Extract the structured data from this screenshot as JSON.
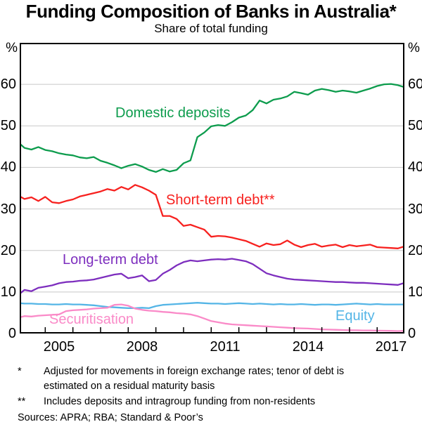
{
  "header": {
    "title": "Funding Composition of Banks in Australia*",
    "subtitle": "Share of total funding"
  },
  "axes": {
    "unit_left": "%",
    "unit_right": "%",
    "y_ticks": [
      60,
      50,
      40,
      30,
      20,
      10,
      0
    ],
    "x_ticks": [
      2005,
      2008,
      2011,
      2014,
      2017
    ],
    "grid_color": "#c8c8c8",
    "axis_color": "#000000"
  },
  "chart_data": {
    "type": "line",
    "title": "Funding Composition of Banks in Australia*",
    "subtitle": "Share of total funding",
    "ylabel": "%",
    "ylim": [
      0,
      70
    ],
    "xlim": [
      2003.58,
      2017.49
    ],
    "grid": true,
    "legend_position": "inline-labels",
    "x": [
      2003.58,
      2003.75,
      2004.0,
      2004.25,
      2004.5,
      2004.75,
      2005.0,
      2005.25,
      2005.5,
      2005.75,
      2006.0,
      2006.25,
      2006.5,
      2006.75,
      2007.0,
      2007.25,
      2007.5,
      2007.75,
      2008.0,
      2008.25,
      2008.5,
      2008.75,
      2009.0,
      2009.25,
      2009.5,
      2009.75,
      2010.0,
      2010.25,
      2010.5,
      2010.75,
      2011.0,
      2011.25,
      2011.5,
      2011.75,
      2012.0,
      2012.25,
      2012.5,
      2012.75,
      2013.0,
      2013.25,
      2013.5,
      2013.75,
      2014.0,
      2014.25,
      2014.5,
      2014.75,
      2015.0,
      2015.25,
      2015.5,
      2015.75,
      2016.0,
      2016.25,
      2016.5,
      2016.75,
      2017.0,
      2017.25,
      2017.5
    ],
    "series": [
      {
        "name": "Domestic deposits",
        "color": "#0d9c4d",
        "values": [
          45.7,
          44.7,
          44.3,
          44.9,
          44.2,
          43.9,
          43.4,
          43.1,
          42.9,
          42.4,
          42.2,
          42.5,
          41.6,
          41.1,
          40.5,
          39.8,
          40.4,
          40.8,
          40.2,
          39.4,
          38.9,
          39.6,
          39.0,
          39.4,
          41.0,
          41.7,
          47.3,
          48.4,
          49.9,
          50.2,
          50.0,
          50.9,
          52.0,
          52.5,
          53.8,
          56.1,
          55.4,
          56.3,
          56.6,
          57.1,
          58.2,
          57.9,
          57.5,
          58.5,
          58.9,
          58.6,
          58.2,
          58.5,
          58.3,
          58.0,
          58.5,
          59.0,
          59.6,
          60.0,
          60.1,
          59.8,
          59.3
        ]
      },
      {
        "name": "Short-term debt**",
        "color": "#f7211f",
        "values": [
          33.0,
          32.4,
          32.8,
          31.9,
          32.9,
          31.6,
          31.4,
          31.9,
          32.3,
          33.0,
          33.4,
          33.8,
          34.2,
          34.8,
          34.4,
          35.3,
          34.7,
          35.8,
          35.2,
          34.4,
          33.4,
          28.3,
          28.3,
          27.6,
          25.9,
          26.2,
          25.6,
          25.0,
          23.3,
          23.5,
          23.4,
          23.1,
          22.7,
          22.3,
          21.6,
          20.9,
          21.7,
          21.3,
          21.5,
          22.4,
          21.4,
          20.8,
          21.3,
          21.6,
          20.9,
          21.2,
          21.4,
          20.8,
          21.3,
          21.0,
          21.2,
          21.4,
          20.8,
          20.7,
          20.6,
          20.5,
          21.0
        ]
      },
      {
        "name": "Long-term debt",
        "color": "#7d2ebe",
        "values": [
          9.6,
          10.5,
          10.2,
          11.0,
          11.3,
          11.6,
          12.1,
          12.4,
          12.5,
          12.7,
          12.8,
          13.0,
          13.4,
          13.8,
          14.2,
          14.4,
          13.3,
          13.6,
          14.0,
          12.6,
          12.9,
          14.4,
          15.3,
          16.4,
          17.2,
          17.6,
          17.4,
          17.6,
          17.8,
          17.9,
          17.8,
          18.0,
          17.7,
          17.4,
          16.7,
          15.6,
          14.5,
          14.0,
          13.6,
          13.2,
          13.0,
          12.9,
          12.8,
          12.7,
          12.6,
          12.5,
          12.4,
          12.4,
          12.3,
          12.2,
          12.2,
          12.1,
          12.0,
          11.9,
          11.8,
          11.7,
          12.2
        ]
      },
      {
        "name": "Equity",
        "color": "#54b5e6",
        "values": [
          7.3,
          7.2,
          7.2,
          7.1,
          7.1,
          7.0,
          7.0,
          7.1,
          7.0,
          7.0,
          6.9,
          6.8,
          6.6,
          6.4,
          6.3,
          6.2,
          6.1,
          6.1,
          6.2,
          6.1,
          6.6,
          6.9,
          7.0,
          7.1,
          7.2,
          7.3,
          7.4,
          7.3,
          7.2,
          7.2,
          7.1,
          7.2,
          7.3,
          7.2,
          7.1,
          7.2,
          7.1,
          7.0,
          7.1,
          7.0,
          7.0,
          7.1,
          7.0,
          6.9,
          7.0,
          7.0,
          6.9,
          7.0,
          7.1,
          7.2,
          7.1,
          7.0,
          7.1,
          7.0,
          7.0,
          7.0,
          7.0
        ]
      },
      {
        "name": "Securitisation",
        "color": "#fa8ac8",
        "values": [
          3.9,
          4.2,
          4.1,
          4.3,
          4.4,
          4.5,
          4.6,
          5.4,
          5.6,
          5.7,
          5.8,
          6.0,
          6.1,
          6.2,
          6.9,
          7.0,
          6.7,
          6.0,
          5.7,
          5.5,
          5.4,
          5.2,
          5.1,
          4.9,
          4.8,
          4.6,
          4.2,
          3.6,
          3.0,
          2.7,
          2.4,
          2.2,
          2.1,
          2.0,
          1.9,
          1.8,
          1.7,
          1.6,
          1.5,
          1.4,
          1.3,
          1.25,
          1.2,
          1.1,
          1.0,
          0.95,
          0.9,
          0.85,
          0.8,
          0.78,
          0.75,
          0.72,
          0.7,
          0.68,
          0.65,
          0.6,
          0.65
        ]
      }
    ]
  },
  "footnotes": [
    {
      "marker": "*",
      "lines": [
        "Adjusted for movements in foreign exchange rates; tenor of debt is",
        "estimated on a residual maturity basis"
      ]
    },
    {
      "marker": "**",
      "lines": [
        "Includes deposits and intragroup funding from non-residents"
      ]
    }
  ],
  "sources": "Sources: APRA; RBA; Standard & Poor’s"
}
